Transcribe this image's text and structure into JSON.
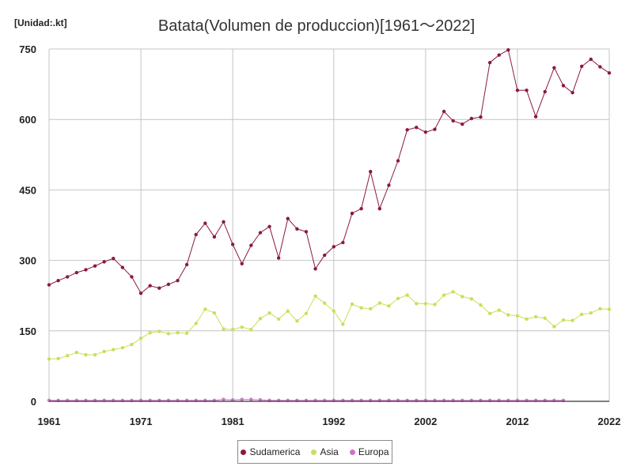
{
  "chart_data": {
    "type": "line",
    "title": "Batata(Volumen de produccion)[1961～2022]",
    "unit_label": "[Unidad:.kt]",
    "x": [
      1961,
      1962,
      1963,
      1964,
      1965,
      1966,
      1967,
      1968,
      1969,
      1970,
      1971,
      1972,
      1973,
      1974,
      1975,
      1976,
      1977,
      1978,
      1979,
      1980,
      1981,
      1982,
      1983,
      1984,
      1985,
      1986,
      1987,
      1988,
      1989,
      1990,
      1991,
      1992,
      1993,
      1994,
      1995,
      1996,
      1997,
      1998,
      1999,
      2000,
      2001,
      2002,
      2003,
      2004,
      2005,
      2006,
      2007,
      2008,
      2009,
      2010,
      2011,
      2012,
      2013,
      2014,
      2015,
      2016,
      2017,
      2018,
      2019,
      2020,
      2021,
      2022
    ],
    "x_ticks": [
      1961,
      1971,
      1981,
      1992,
      2002,
      2012,
      2022
    ],
    "y_ticks": [
      0,
      150,
      300,
      450,
      600,
      750
    ],
    "ylim": [
      0,
      750
    ],
    "grid": true,
    "legend_position": "bottom",
    "series": [
      {
        "name": "Sudamerica",
        "color": "#8b1a3a",
        "values": [
          248,
          257,
          265,
          274,
          280,
          288,
          297,
          304,
          285,
          265,
          230,
          246,
          241,
          249,
          257,
          291,
          355,
          379,
          350,
          382,
          334,
          293,
          332,
          359,
          372,
          305,
          389,
          367,
          361,
          282,
          311,
          329,
          338,
          400,
          410,
          489,
          410,
          460,
          512,
          578,
          583,
          573,
          579,
          617,
          597,
          590,
          602,
          605,
          721,
          737,
          748,
          662,
          662,
          606,
          659,
          710,
          672,
          657,
          713,
          728,
          712,
          699
        ]
      },
      {
        "name": "Asia",
        "color": "#c8e05a",
        "values": [
          90,
          91,
          97,
          104,
          99,
          99,
          106,
          110,
          114,
          121,
          134,
          146,
          149,
          144,
          146,
          145,
          166,
          196,
          188,
          154,
          153,
          158,
          153,
          176,
          188,
          175,
          192,
          171,
          187,
          224,
          209,
          192,
          164,
          207,
          199,
          197,
          209,
          203,
          219,
          226,
          208,
          208,
          206,
          226,
          233,
          223,
          218,
          205,
          187,
          194,
          184,
          182,
          175,
          180,
          177,
          159,
          173,
          172,
          185,
          188,
          197,
          196
        ]
      },
      {
        "name": "Europa",
        "color": "#d070c8",
        "values": [
          2,
          2,
          2,
          2,
          2,
          2,
          2,
          2,
          2,
          2,
          2,
          2,
          2,
          2,
          2,
          2,
          2,
          2,
          2,
          4,
          3,
          4,
          4,
          3,
          2,
          2,
          2,
          2,
          2,
          2,
          2,
          2,
          2,
          2,
          2,
          2,
          2,
          2,
          2,
          2,
          2,
          2,
          2,
          2,
          2,
          2,
          2,
          2,
          2,
          2,
          2,
          2,
          2,
          2,
          2,
          2,
          2,
          null,
          null,
          null,
          null,
          null
        ]
      }
    ]
  }
}
